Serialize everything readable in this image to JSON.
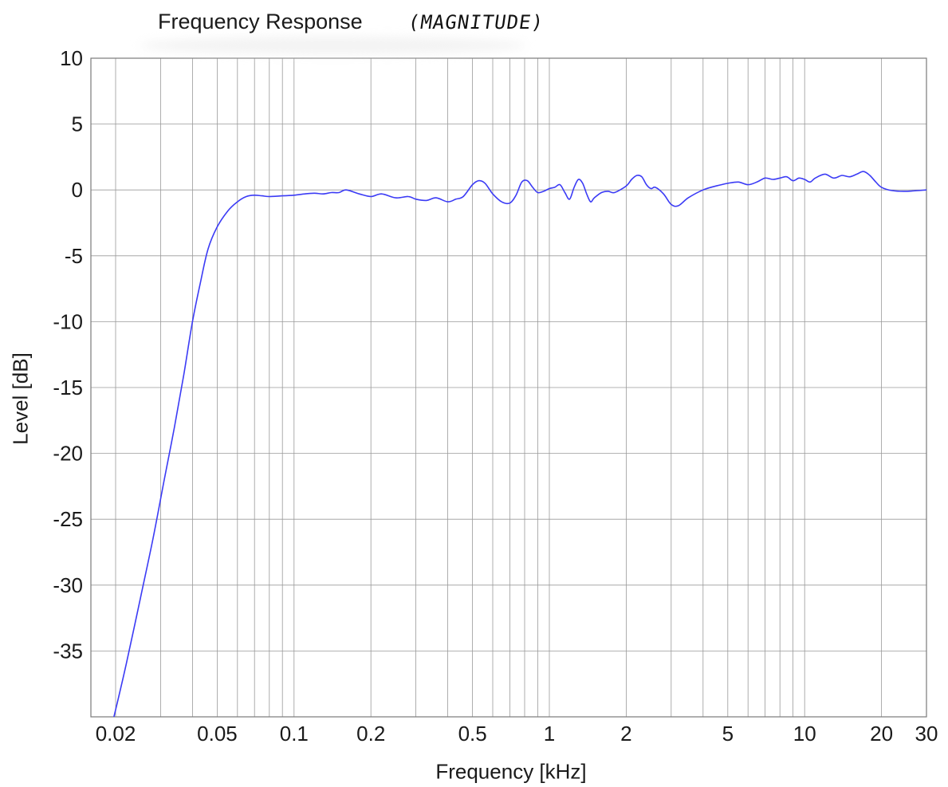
{
  "chart_data": {
    "type": "line",
    "title": "Frequency Response",
    "annotation": "(MAGNITUDE)",
    "xlabel": "Frequency [kHz]",
    "ylabel": "Level [dB]",
    "x_scale": "log",
    "xlim": [
      0.016,
      30
    ],
    "ylim": [
      -40,
      10
    ],
    "x_ticks": [
      0.02,
      0.05,
      0.1,
      0.2,
      0.5,
      1,
      2,
      5,
      10,
      20,
      30
    ],
    "x_tick_labels": [
      "0.02",
      "0.05",
      "0.1",
      "0.2",
      "0.5",
      "1",
      "2",
      "5",
      "10",
      "20",
      "30"
    ],
    "y_ticks": [
      10,
      5,
      0,
      -5,
      -10,
      -15,
      -20,
      -25,
      -30,
      -35
    ],
    "y_tick_labels": [
      "10",
      "5",
      "0",
      "-5",
      "-10",
      "-15",
      "-20",
      "-25",
      "-30",
      "-35"
    ],
    "grid": true,
    "line_color": "#3b3bf5",
    "series": [
      {
        "x": [
          0.0197,
          0.022,
          0.025,
          0.028,
          0.031,
          0.034,
          0.037,
          0.04,
          0.043,
          0.046,
          0.05,
          0.055,
          0.06,
          0.065,
          0.07,
          0.075,
          0.08,
          0.09,
          0.1,
          0.11,
          0.12,
          0.13,
          0.14,
          0.15,
          0.16,
          0.18,
          0.2,
          0.22,
          0.25,
          0.28,
          0.3,
          0.33,
          0.36,
          0.4,
          0.43,
          0.46,
          0.5,
          0.53,
          0.56,
          0.6,
          0.65,
          0.7,
          0.74,
          0.78,
          0.82,
          0.86,
          0.9,
          0.95,
          1.0,
          1.05,
          1.1,
          1.15,
          1.2,
          1.25,
          1.3,
          1.35,
          1.4,
          1.45,
          1.5,
          1.6,
          1.7,
          1.8,
          2.0,
          2.1,
          2.2,
          2.3,
          2.4,
          2.5,
          2.6,
          2.8,
          3.0,
          3.2,
          3.5,
          4.0,
          4.5,
          5.0,
          5.5,
          6.0,
          6.5,
          7.0,
          7.5,
          8.0,
          8.5,
          9.0,
          9.5,
          10.0,
          10.5,
          11.0,
          12.0,
          13.0,
          14.0,
          15.0,
          16.0,
          17.0,
          18.0,
          19.0,
          20.0,
          22.0,
          25.0,
          30.0
        ],
        "y": [
          -40,
          -36,
          -31,
          -26.5,
          -22,
          -18,
          -14,
          -10,
          -7,
          -4.5,
          -2.8,
          -1.6,
          -0.9,
          -0.5,
          -0.4,
          -0.45,
          -0.5,
          -0.45,
          -0.4,
          -0.3,
          -0.25,
          -0.3,
          -0.2,
          -0.2,
          0,
          -0.3,
          -0.5,
          -0.3,
          -0.6,
          -0.5,
          -0.7,
          -0.8,
          -0.6,
          -0.9,
          -0.7,
          -0.5,
          0.4,
          0.7,
          0.5,
          -0.3,
          -0.9,
          -1.0,
          -0.4,
          0.6,
          0.7,
          0.2,
          -0.2,
          -0.1,
          0.1,
          0.2,
          0.4,
          -0.2,
          -0.7,
          0.2,
          0.8,
          0.5,
          -0.3,
          -0.9,
          -0.6,
          -0.2,
          -0.1,
          -0.2,
          0.3,
          0.8,
          1.1,
          1.0,
          0.4,
          0.1,
          0.2,
          -0.3,
          -1.1,
          -1.2,
          -0.6,
          0.0,
          0.3,
          0.5,
          0.6,
          0.4,
          0.6,
          0.9,
          0.8,
          0.9,
          1.0,
          0.7,
          0.9,
          0.8,
          0.6,
          0.9,
          1.2,
          0.9,
          1.1,
          1.0,
          1.2,
          1.4,
          1.1,
          0.6,
          0.2,
          -0.05,
          -0.1,
          0.0
        ]
      }
    ]
  }
}
